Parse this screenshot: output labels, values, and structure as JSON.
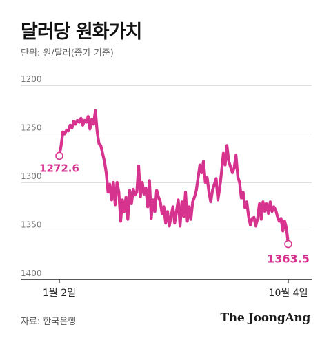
{
  "title": "달러당 원화가치",
  "unit_label": "단위: 원/달러(종가 기준)",
  "source": "자료: 한국은행",
  "brand": "The JoongAng",
  "colors": {
    "line": "#d6338f",
    "grid": "#bfbfbf",
    "axis": "#222222",
    "text": "#666666"
  },
  "chart_data": {
    "type": "line",
    "title": "달러당 원화가치",
    "ylabel": "원/달러",
    "xlabel": "",
    "y_inverted": true,
    "ylim": [
      1200,
      1400
    ],
    "y_ticks": [
      1200,
      1250,
      1300,
      1350,
      1400
    ],
    "x_ticks": [
      "1월 2일",
      "10월 4일"
    ],
    "annotations": [
      {
        "label": "1272.6",
        "point": "start"
      },
      {
        "label": "1363.5",
        "point": "end"
      }
    ],
    "series": [
      {
        "values": [
          1272.6,
          1262,
          1248,
          1250,
          1246,
          1247,
          1241,
          1244,
          1237,
          1240,
          1236,
          1238,
          1234,
          1241,
          1236,
          1238,
          1232,
          1245,
          1235,
          1240,
          1226,
          1248,
          1260,
          1262,
          1270,
          1278,
          1290,
          1310,
          1302,
          1318,
          1300,
          1323,
          1300,
          1310,
          1340,
          1318,
          1330,
          1315,
          1338,
          1308,
          1322,
          1307,
          1313,
          1310,
          1283,
          1315,
          1300,
          1312,
          1306,
          1325,
          1298,
          1337,
          1318,
          1330,
          1308,
          1315,
          1320,
          1332,
          1325,
          1342,
          1330,
          1345,
          1335,
          1325,
          1342,
          1330,
          1318,
          1345,
          1320,
          1335,
          1310,
          1340,
          1325,
          1338,
          1320,
          1315,
          1308,
          1295,
          1282,
          1290,
          1278,
          1300,
          1295,
          1310,
          1320,
          1308,
          1302,
          1296,
          1318,
          1305,
          1289,
          1270,
          1282,
          1262,
          1278,
          1284,
          1290,
          1285,
          1272,
          1294,
          1300,
          1316,
          1310,
          1326,
          1320,
          1335,
          1344,
          1337,
          1336,
          1345,
          1337,
          1322,
          1338,
          1320,
          1330,
          1322,
          1332,
          1320,
          1330,
          1325,
          1328,
          1335,
          1340,
          1337,
          1350,
          1340,
          1347,
          1363.5
        ]
      }
    ]
  }
}
